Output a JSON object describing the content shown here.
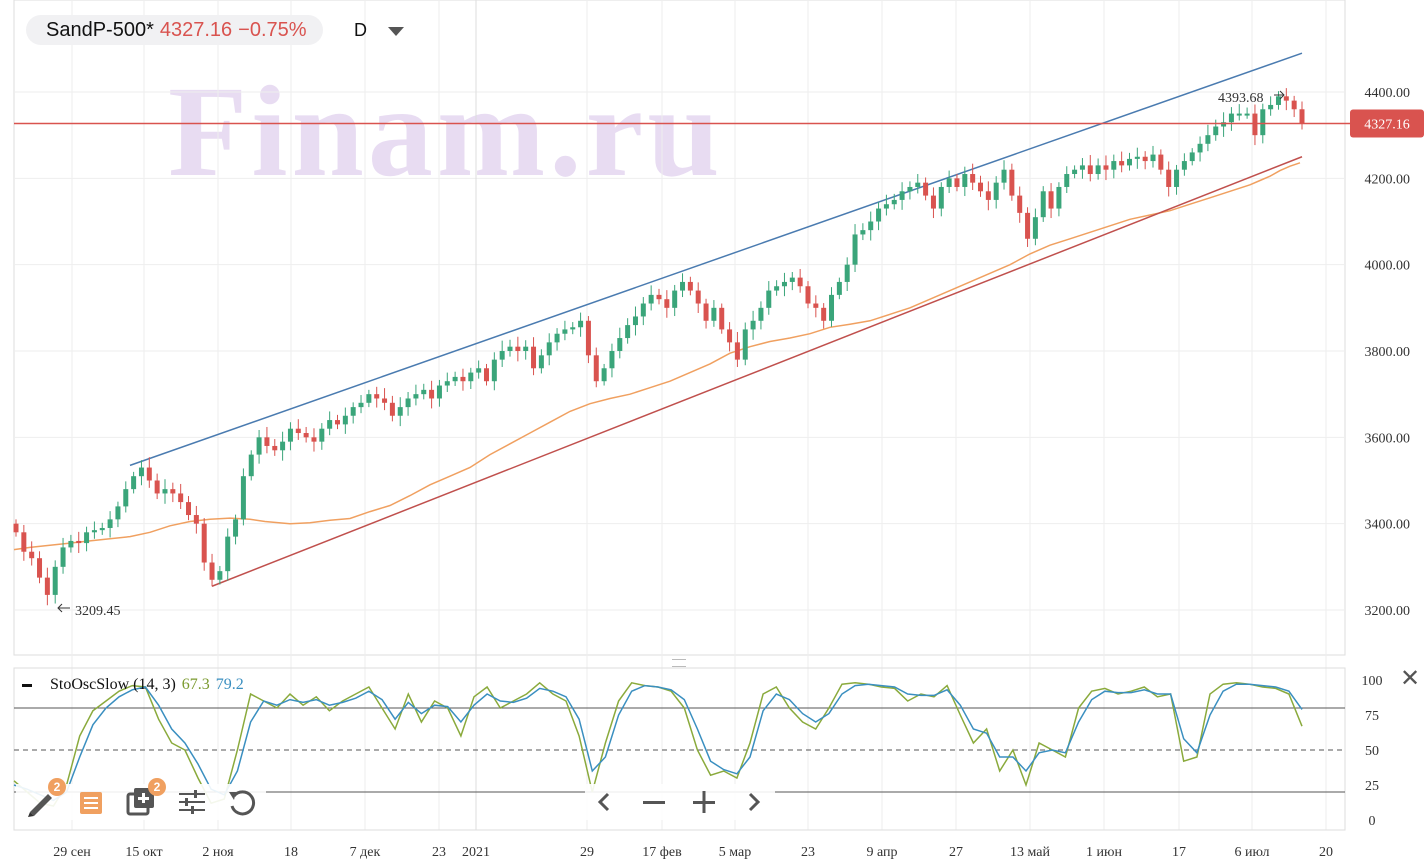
{
  "header": {
    "symbol": "SandP-500*",
    "price": "4327.16",
    "change": "−0.75%",
    "timeframe": "D"
  },
  "watermark": "Finam.ru",
  "colors": {
    "up": "#3aa57a",
    "down": "#d9534f",
    "ma": "#f0a060",
    "upper_channel": "#4a7bb0",
    "lower_channel": "#c0504d",
    "price_line": "#d9534f",
    "stoch_k": "#8aaa3c",
    "stoch_d": "#3a8fc0",
    "watermark": "#e8dcf2"
  },
  "chart_data": {
    "type": "candlestick",
    "ylim": [
      3130,
      4500
    ],
    "yticks": [
      "4400.00",
      "4200.00",
      "4000.00",
      "3800.00",
      "3600.00",
      "3400.00",
      "3200.00"
    ],
    "xticks": [
      "29 сен",
      "15 окт",
      "2 ноя",
      "18",
      "7 дек",
      "23",
      "2021",
      "29",
      "17 фев",
      "5 мар",
      "23",
      "9 апр",
      "27",
      "13 май",
      "1 июн",
      "17",
      "6 июл",
      "20"
    ],
    "last_price_label": "4327.16",
    "annotations": {
      "high": "4393.68",
      "low": "3209.45"
    },
    "closes": [
      3380,
      3335,
      3320,
      3275,
      3235,
      3300,
      3345,
      3360,
      3355,
      3380,
      3385,
      3390,
      3410,
      3440,
      3480,
      3510,
      3530,
      3500,
      3470,
      3480,
      3470,
      3450,
      3420,
      3400,
      3310,
      3270,
      3290,
      3370,
      3410,
      3510,
      3560,
      3600,
      3580,
      3570,
      3590,
      3620,
      3610,
      3600,
      3590,
      3620,
      3640,
      3630,
      3650,
      3670,
      3680,
      3700,
      3690,
      3680,
      3650,
      3670,
      3690,
      3700,
      3710,
      3690,
      3720,
      3730,
      3740,
      3730,
      3750,
      3760,
      3730,
      3780,
      3800,
      3810,
      3800,
      3810,
      3760,
      3790,
      3820,
      3840,
      3850,
      3855,
      3870,
      3790,
      3730,
      3760,
      3800,
      3830,
      3860,
      3880,
      3910,
      3930,
      3920,
      3900,
      3940,
      3960,
      3940,
      3910,
      3870,
      3900,
      3850,
      3820,
      3780,
      3850,
      3870,
      3900,
      3940,
      3950,
      3960,
      3970,
      3950,
      3910,
      3900,
      3870,
      3930,
      3960,
      4000,
      4070,
      4080,
      4100,
      4130,
      4140,
      4150,
      4170,
      4180,
      4190,
      4160,
      4130,
      4180,
      4200,
      4180,
      4210,
      4190,
      4170,
      4150,
      4190,
      4220,
      4160,
      4120,
      4060,
      4110,
      4170,
      4130,
      4180,
      4210,
      4220,
      4230,
      4210,
      4230,
      4220,
      4240,
      4230,
      4245,
      4250,
      4240,
      4255,
      4220,
      4180,
      4220,
      4240,
      4260,
      4280,
      4300,
      4320,
      4330,
      4350,
      4350,
      4350,
      4300,
      4360,
      4370,
      4390,
      4380,
      4360,
      4327
    ],
    "ma": [
      3340,
      3345,
      3350,
      3355,
      3360,
      3365,
      3370,
      3380,
      3395,
      3405,
      3410,
      3413,
      3410,
      3405,
      3400,
      3402,
      3408,
      3412,
      3428,
      3442,
      3465,
      3490,
      3510,
      3530,
      3560,
      3585,
      3610,
      3635,
      3660,
      3678,
      3690,
      3700,
      3715,
      3730,
      3750,
      3770,
      3795,
      3810,
      3822,
      3830,
      3840,
      3855,
      3862,
      3870,
      3885,
      3900,
      3920,
      3940,
      3960,
      3980,
      4000,
      4025,
      4045,
      4060,
      4075,
      4090,
      4105,
      4115,
      4125,
      4140,
      4155,
      4170,
      4185,
      4195,
      4205,
      4218,
      4228,
      4236
    ],
    "ma_x": [
      14,
      30,
      50,
      70,
      90,
      110,
      130,
      150,
      170,
      190,
      210,
      230,
      250,
      265,
      290,
      310,
      330,
      350,
      370,
      390,
      410,
      430,
      450,
      470,
      490,
      510,
      530,
      550,
      570,
      590,
      610,
      630,
      650,
      670,
      690,
      710,
      730,
      750,
      770,
      790,
      810,
      830,
      850,
      870,
      890,
      910,
      930,
      950,
      970,
      990,
      1010,
      1030,
      1050,
      1070,
      1090,
      1110,
      1130,
      1150,
      1170,
      1190,
      1210,
      1230,
      1250,
      1260,
      1270,
      1280,
      1290,
      1300
    ],
    "channel_upper": {
      "from": [
        3535,
        130
      ],
      "to": [
        4490,
        1302
      ]
    },
    "channel_lower": {
      "from": [
        3255,
        212
      ],
      "to": [
        4250,
        1302
      ]
    },
    "stochastic": {
      "name": "StoOscSlow (14, 3)",
      "k_label": "67.3",
      "d_label": "79.2",
      "ylim": [
        0,
        100
      ],
      "yticks": [
        "100",
        "75",
        "50",
        "25",
        "0"
      ],
      "levels": [
        80,
        50,
        20
      ],
      "k": [
        28,
        20,
        12,
        10,
        25,
        60,
        78,
        85,
        92,
        96,
        95,
        72,
        55,
        50,
        30,
        12,
        15,
        50,
        90,
        85,
        80,
        90,
        82,
        88,
        78,
        85,
        90,
        95,
        80,
        65,
        90,
        70,
        85,
        80,
        60,
        88,
        95,
        80,
        85,
        90,
        98,
        90,
        85,
        60,
        20,
        55,
        85,
        98,
        96,
        95,
        92,
        80,
        50,
        32,
        35,
        30,
        55,
        90,
        95,
        80,
        70,
        65,
        80,
        97,
        98,
        97,
        95,
        94,
        85,
        90,
        88,
        96,
        75,
        55,
        65,
        35,
        50,
        25,
        55,
        50,
        45,
        80,
        92,
        94,
        90,
        92,
        95,
        88,
        90,
        42,
        45,
        90,
        97,
        98,
        97,
        95,
        94,
        90,
        67
      ],
      "d": [
        25,
        22,
        18,
        14,
        20,
        45,
        68,
        80,
        88,
        93,
        95,
        82,
        65,
        55,
        40,
        22,
        18,
        35,
        70,
        85,
        82,
        86,
        84,
        86,
        82,
        84,
        87,
        92,
        86,
        72,
        84,
        76,
        82,
        81,
        70,
        82,
        90,
        85,
        84,
        87,
        94,
        92,
        88,
        72,
        35,
        45,
        75,
        92,
        96,
        95,
        93,
        86,
        65,
        42,
        36,
        33,
        45,
        78,
        90,
        86,
        76,
        70,
        76,
        90,
        96,
        97,
        96,
        95,
        90,
        89,
        89,
        93,
        82,
        65,
        62,
        45,
        45,
        35,
        48,
        50,
        48,
        70,
        86,
        92,
        91,
        91,
        93,
        90,
        90,
        58,
        48,
        75,
        92,
        97,
        97,
        96,
        95,
        92,
        79
      ]
    }
  },
  "toolbar": {
    "draw_badge": "2",
    "layers_badge": "2"
  }
}
